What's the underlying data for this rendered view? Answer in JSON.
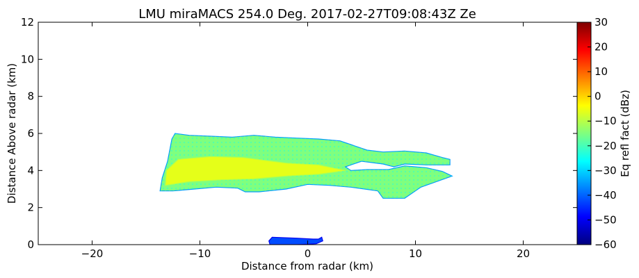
{
  "chart_data": {
    "type": "heatmap",
    "title": "LMU miraMACS 254.0 Deg. 2017-02-27T09:08:43Z  Ze",
    "xlabel": "Distance from radar (km)",
    "ylabel": "Distance Above radar  (km)",
    "xlim": [
      -25,
      25
    ],
    "ylim": [
      0,
      12
    ],
    "xticks": [
      -20,
      -10,
      0,
      10,
      20
    ],
    "xtick_labels": [
      "−20",
      "−10",
      "0",
      "10",
      "20"
    ],
    "yticks": [
      0,
      2,
      4,
      6,
      8,
      10,
      12
    ],
    "ytick_labels": [
      "0",
      "2",
      "4",
      "6",
      "8",
      "10",
      "12"
    ],
    "colorbar": {
      "label": "Eq refl fact (dBz)",
      "range": [
        -60,
        30
      ],
      "ticks": [
        30,
        20,
        10,
        0,
        -10,
        -20,
        -30,
        -40,
        -50,
        -60
      ],
      "tick_labels": [
        "30",
        "20",
        "10",
        "0",
        "−10",
        "−20",
        "−30",
        "−40",
        "−50",
        "−60"
      ],
      "colormap": "jet",
      "colors": [
        "#00007f",
        "#0000ff",
        "#007fff",
        "#00ffff",
        "#7fff7f",
        "#ffff00",
        "#ff7f00",
        "#ff0000",
        "#7f0000"
      ]
    },
    "echo_regions": [
      {
        "name": "main cloud layer",
        "dbz_range": [
          -35,
          -5
        ],
        "typical_dbz": -15,
        "outline": [
          [
            -13.7,
            2.9
          ],
          [
            -13.5,
            3.6
          ],
          [
            -13.0,
            4.5
          ],
          [
            -12.6,
            5.7
          ],
          [
            -12.3,
            6.0
          ],
          [
            -11.0,
            5.9
          ],
          [
            -9.0,
            5.85
          ],
          [
            -7.0,
            5.8
          ],
          [
            -5.0,
            5.9
          ],
          [
            -3.0,
            5.8
          ],
          [
            -1.0,
            5.75
          ],
          [
            1.0,
            5.7
          ],
          [
            3.0,
            5.6
          ],
          [
            4.0,
            5.4
          ],
          [
            5.5,
            5.1
          ],
          [
            7.0,
            5.0
          ],
          [
            9.0,
            5.05
          ],
          [
            11.0,
            4.95
          ],
          [
            12.5,
            4.7
          ],
          [
            13.2,
            4.6
          ],
          [
            13.2,
            4.3
          ],
          [
            11.0,
            4.3
          ],
          [
            9.0,
            4.35
          ],
          [
            8.0,
            4.2
          ],
          [
            7.0,
            4.35
          ],
          [
            5.0,
            4.5
          ],
          [
            3.5,
            4.2
          ],
          [
            4.0,
            4.0
          ],
          [
            5.5,
            4.05
          ],
          [
            7.5,
            4.05
          ],
          [
            9.0,
            4.25
          ],
          [
            11.0,
            4.15
          ],
          [
            12.5,
            3.95
          ],
          [
            13.4,
            3.7
          ],
          [
            10.5,
            3.1
          ],
          [
            9.0,
            2.5
          ],
          [
            7.0,
            2.5
          ],
          [
            6.5,
            2.9
          ],
          [
            4.0,
            3.1
          ],
          [
            2.0,
            3.2
          ],
          [
            0.0,
            3.25
          ],
          [
            -2.0,
            3.0
          ],
          [
            -4.5,
            2.85
          ],
          [
            -5.8,
            2.85
          ],
          [
            -6.5,
            3.05
          ],
          [
            -8.5,
            3.1
          ],
          [
            -10.5,
            3.0
          ],
          [
            -12.5,
            2.9
          ]
        ]
      },
      {
        "name": "enhanced core",
        "dbz_range": [
          -10,
          -2
        ],
        "typical_dbz": -6,
        "outline": [
          [
            -13.2,
            3.2
          ],
          [
            -11.0,
            3.4
          ],
          [
            -8.0,
            3.5
          ],
          [
            -5.0,
            3.55
          ],
          [
            -2.0,
            3.7
          ],
          [
            1.0,
            3.8
          ],
          [
            3.5,
            4.0
          ],
          [
            1.0,
            4.3
          ],
          [
            -2.0,
            4.4
          ],
          [
            -6.0,
            4.7
          ],
          [
            -9.0,
            4.75
          ],
          [
            -12.0,
            4.6
          ],
          [
            -13.1,
            4.0
          ]
        ]
      },
      {
        "name": "near-surface clutter",
        "dbz_range": [
          -50,
          -35
        ],
        "typical_dbz": -42,
        "outline": [
          [
            -3.5,
            0.0
          ],
          [
            -3.6,
            0.2
          ],
          [
            -3.3,
            0.4
          ],
          [
            -1.0,
            0.35
          ],
          [
            0.5,
            0.3
          ],
          [
            1.0,
            0.3
          ],
          [
            1.3,
            0.4
          ],
          [
            1.4,
            0.2
          ],
          [
            0.8,
            0.05
          ],
          [
            -1.0,
            0.0
          ]
        ]
      }
    ]
  }
}
